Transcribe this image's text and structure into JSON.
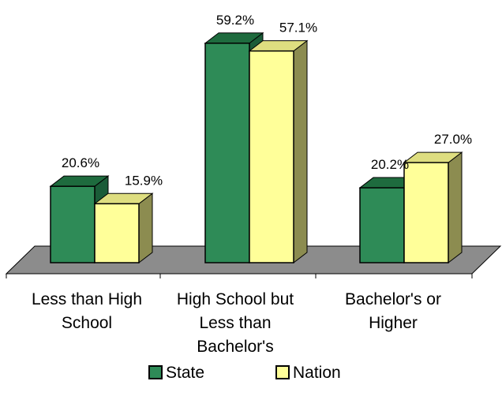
{
  "chart_data": {
    "type": "bar",
    "categories": [
      [
        "Less than High",
        "School"
      ],
      [
        "High School but",
        "Less than",
        "Bachelor's"
      ],
      [
        "Bachelor's or",
        "Higher"
      ]
    ],
    "series": [
      {
        "name": "State",
        "values": [
          20.6,
          59.2,
          20.2
        ],
        "labels": [
          "20.6%",
          "59.2%",
          "20.2%"
        ]
      },
      {
        "name": "Nation",
        "values": [
          15.9,
          57.1,
          27.0
        ],
        "labels": [
          "15.9%",
          "57.1%",
          "27.0%"
        ]
      }
    ],
    "ylim": [
      0,
      60
    ],
    "three_d": true,
    "grid": false,
    "legend_position": "bottom",
    "colors": {
      "State": {
        "front": "#2e8b57",
        "top": "#1e6b3e",
        "side": "#1a5c38"
      },
      "Nation": {
        "front": "#ffff99",
        "top": "#dede80",
        "side": "#8c8c50"
      },
      "floor": "#8c8c8c",
      "outline": "#000000"
    }
  }
}
